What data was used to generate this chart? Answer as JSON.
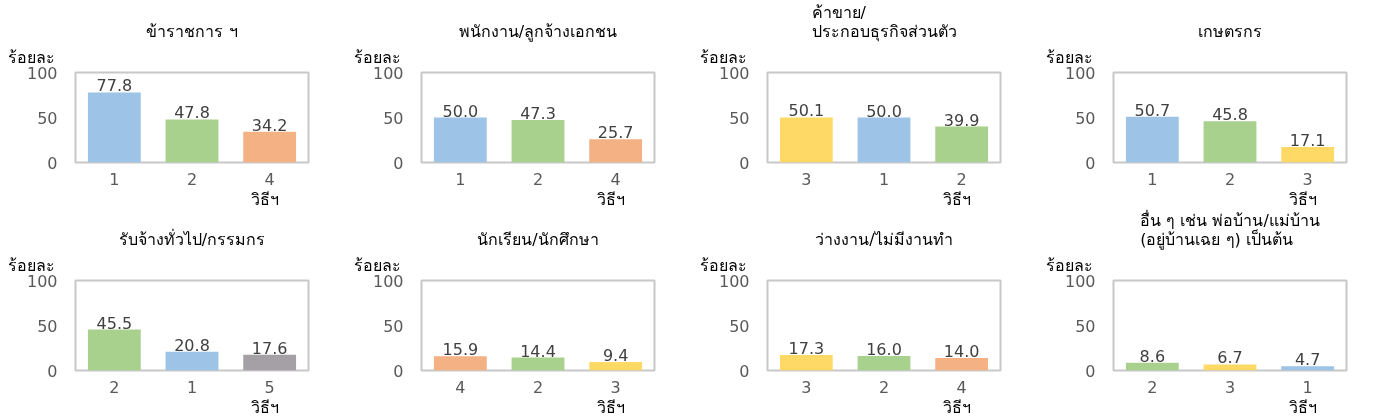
{
  "chart_data": [
    {
      "type": "bar",
      "title": "ข้าราชการ ฯ",
      "ylabel": "ร้อยละ",
      "xlabel": "วิธีฯ",
      "categories": [
        "1",
        "2",
        "4"
      ],
      "values": [
        77.8,
        47.8,
        34.2
      ],
      "value_labels": [
        "77.8",
        "47.8",
        "34.2"
      ],
      "colors": [
        "#9dc3e6",
        "#a9d18e",
        "#f4b183"
      ],
      "ylim": [
        0,
        100
      ],
      "yticks": [
        0,
        50,
        100
      ],
      "grid": false
    },
    {
      "type": "bar",
      "title": "พนักงาน/ลูกจ้างเอกชน",
      "ylabel": "ร้อยละ",
      "xlabel": "วิธีฯ",
      "categories": [
        "1",
        "2",
        "4"
      ],
      "values": [
        50.0,
        47.3,
        25.7
      ],
      "value_labels": [
        "50.0",
        "47.3",
        "25.7"
      ],
      "colors": [
        "#9dc3e6",
        "#a9d18e",
        "#f4b183"
      ],
      "ylim": [
        0,
        100
      ],
      "yticks": [
        0,
        50,
        100
      ],
      "grid": false
    },
    {
      "type": "bar",
      "title": "ค้าขาย/\nประกอบธุรกิจส่วนตัว",
      "ylabel": "ร้อยละ",
      "xlabel": "วิธีฯ",
      "categories": [
        "3",
        "1",
        "2"
      ],
      "values": [
        50.1,
        50.0,
        39.9
      ],
      "value_labels": [
        "50.1",
        "50.0",
        "39.9"
      ],
      "colors": [
        "#ffd966",
        "#9dc3e6",
        "#a9d18e"
      ],
      "ylim": [
        0,
        100
      ],
      "yticks": [
        0,
        50,
        100
      ],
      "grid": false
    },
    {
      "type": "bar",
      "title": "เกษตรกร",
      "ylabel": "ร้อยละ",
      "xlabel": "วิธีฯ",
      "categories": [
        "1",
        "2",
        "3"
      ],
      "values": [
        50.7,
        45.8,
        17.1
      ],
      "value_labels": [
        "50.7",
        "45.8",
        "17.1"
      ],
      "colors": [
        "#9dc3e6",
        "#a9d18e",
        "#ffd966"
      ],
      "ylim": [
        0,
        100
      ],
      "yticks": [
        0,
        50,
        100
      ],
      "grid": false
    },
    {
      "type": "bar",
      "title": "รับจ้างทั่วไป/กรรมกร",
      "ylabel": "ร้อยละ",
      "xlabel": "วิธีฯ",
      "categories": [
        "2",
        "1",
        "5"
      ],
      "values": [
        45.5,
        20.8,
        17.6
      ],
      "value_labels": [
        "45.5",
        "20.8",
        "17.6"
      ],
      "colors": [
        "#a9d18e",
        "#9dc3e6",
        "#a5a0a5"
      ],
      "ylim": [
        0,
        100
      ],
      "yticks": [
        0,
        50,
        100
      ],
      "grid": false
    },
    {
      "type": "bar",
      "title": "นักเรียน/นักศึกษา",
      "ylabel": "ร้อยละ",
      "xlabel": "วิธีฯ",
      "categories": [
        "4",
        "2",
        "3"
      ],
      "values": [
        15.9,
        14.4,
        9.4
      ],
      "value_labels": [
        "15.9",
        "14.4",
        "9.4"
      ],
      "colors": [
        "#f4b183",
        "#a9d18e",
        "#ffd966"
      ],
      "ylim": [
        0,
        100
      ],
      "yticks": [
        0,
        50,
        100
      ],
      "grid": false
    },
    {
      "type": "bar",
      "title": "ว่างงาน/ไม่มีงานทำ",
      "ylabel": "ร้อยละ",
      "xlabel": "วิธีฯ",
      "categories": [
        "3",
        "2",
        "4"
      ],
      "values": [
        17.3,
        16.0,
        14.0
      ],
      "value_labels": [
        "17.3",
        "16.0",
        "14.0"
      ],
      "colors": [
        "#ffd966",
        "#a9d18e",
        "#f4b183"
      ],
      "ylim": [
        0,
        100
      ],
      "yticks": [
        0,
        50,
        100
      ],
      "grid": false
    },
    {
      "type": "bar",
      "title": "อื่น ๆ เช่น พ่อบ้าน/แม่บ้าน\n(อยู่บ้านเฉย ๆ) เป็นต้น",
      "ylabel": "ร้อยละ",
      "xlabel": "วิธีฯ",
      "categories": [
        "2",
        "3",
        "1"
      ],
      "values": [
        8.6,
        6.7,
        4.7
      ],
      "value_labels": [
        "8.6",
        "6.7",
        "4.7"
      ],
      "colors": [
        "#a9d18e",
        "#ffd966",
        "#9dc3e6"
      ],
      "ylim": [
        0,
        100
      ],
      "yticks": [
        0,
        50,
        100
      ],
      "grid": false
    }
  ]
}
